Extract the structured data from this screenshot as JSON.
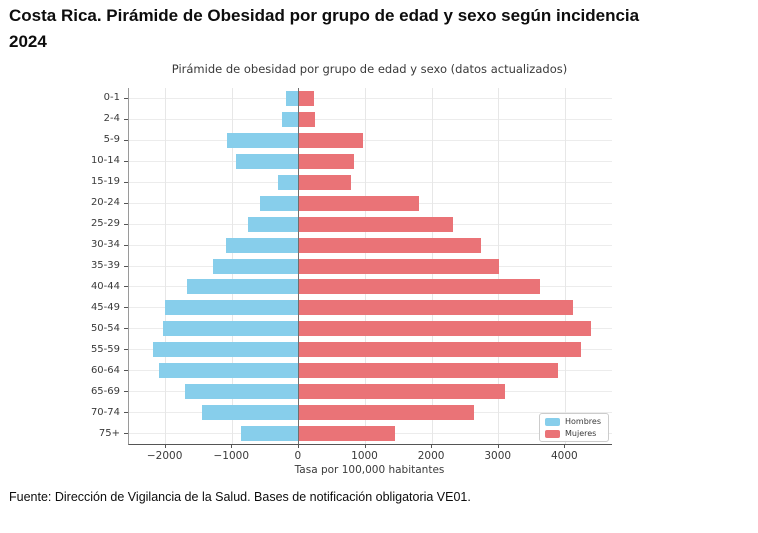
{
  "page": {
    "title_line1": "Costa Rica. Pirámide de Obesidad por grupo de edad y sexo según incidencia",
    "title_line2": "2024",
    "source": "Fuente: Dirección de Vigilancia de la Salud. Bases de notificación obligatoria VE01."
  },
  "chart_data": {
    "type": "bar",
    "variant": "population-pyramid",
    "title": "Pirámide de obesidad por grupo de edad y sexo (datos actualizados)",
    "xlabel": "Tasa por 100,000 habitantes",
    "ylabel": "",
    "categories": [
      "0-1",
      "2-4",
      "5-9",
      "10-14",
      "15-19",
      "20-24",
      "25-29",
      "30-34",
      "35-39",
      "40-44",
      "45-49",
      "50-54",
      "55-59",
      "60-64",
      "65-69",
      "70-74",
      "75+"
    ],
    "series": [
      {
        "name": "Hombres",
        "side": "left",
        "color": "#87CEEB",
        "values": [
          190,
          250,
          1080,
          940,
          310,
          590,
          760,
          1100,
          1290,
          1680,
          2010,
          2040,
          2190,
          2100,
          1710,
          1450,
          870
        ]
      },
      {
        "name": "Mujeres",
        "side": "right",
        "color": "#EA7377",
        "values": [
          225,
          235,
          960,
          830,
          780,
          1800,
          2310,
          2730,
          3000,
          3620,
          4120,
          4390,
          4240,
          3890,
          3090,
          2630,
          1450
        ]
      }
    ],
    "xlim": [
      -2550,
      4700
    ],
    "xticks": [
      -2000,
      -1000,
      0,
      1000,
      2000,
      3000,
      4000
    ],
    "xtick_labels": [
      "−2000",
      "−1000",
      "0",
      "1000",
      "2000",
      "3000",
      "4000"
    ],
    "grid": true,
    "legend_position": "lower right",
    "zero_line_color": "#6f6f6f"
  }
}
